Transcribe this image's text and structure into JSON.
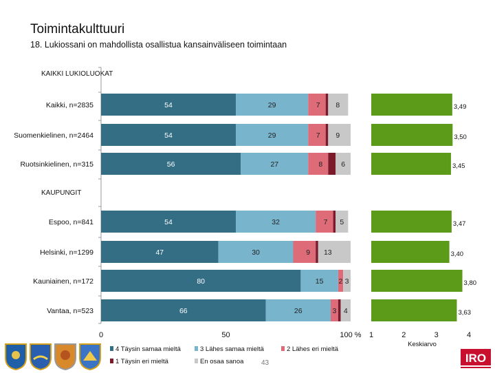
{
  "header": {
    "title": "Toimintakulttuuri",
    "subtitle": "18. Lukiossani on mahdollista osallistua kansainväliseen toimintaan"
  },
  "footer": {
    "page_number": "43"
  },
  "brand": {
    "logo_text": "IRO",
    "logo_color": "#c8102e"
  },
  "colors": {
    "agree_fully": "#336e85",
    "agree_somewhat": "#78b4cc",
    "disagree_somewhat": "#de6b78",
    "disagree_fully": "#7a1a2a",
    "dont_know": "#c8c8c8",
    "mean_bar": "#5c9a1a"
  },
  "chart_data": {
    "type": "bar",
    "orientation": "horizontal",
    "stacked": true,
    "group_labels": [
      "KAIKKI LUKIOLUOKAT",
      "KAUPUNGIT"
    ],
    "rows": [
      {
        "label": "Kaikki, n=2835",
        "group": 0,
        "values": [
          54,
          29,
          7,
          1,
          8
        ],
        "value_labels": [
          "54",
          "29",
          "7",
          "1",
          "8"
        ],
        "mean": 3.49,
        "mean_label": "3,49"
      },
      {
        "label": "Suomenkielinen, n=2464",
        "group": 0,
        "values": [
          54,
          29,
          7,
          1,
          9
        ],
        "value_labels": [
          "54",
          "29",
          "7",
          "1",
          "9"
        ],
        "mean": 3.5,
        "mean_label": "3,50"
      },
      {
        "label": "Ruotsinkielinen, n=315",
        "group": 0,
        "values": [
          56,
          27,
          8,
          3,
          6
        ],
        "value_labels": [
          "56",
          "27",
          "8",
          "3",
          "6"
        ],
        "mean": 3.45,
        "mean_label": "3,45"
      },
      {
        "label": "Espoo, n=841",
        "group": 1,
        "values": [
          54,
          32,
          7,
          1,
          5
        ],
        "value_labels": [
          "54",
          "32",
          "7",
          "1",
          "5"
        ],
        "mean": 3.47,
        "mean_label": "3,47"
      },
      {
        "label": "Helsinki, n=1299",
        "group": 1,
        "values": [
          47,
          30,
          9,
          1,
          13
        ],
        "value_labels": [
          "47",
          "30",
          "9",
          "1",
          "13"
        ],
        "mean": 3.4,
        "mean_label": "3,40"
      },
      {
        "label": "Kauniainen, n=172",
        "group": 1,
        "values": [
          80,
          15,
          2,
          0,
          3
        ],
        "value_labels": [
          "80",
          "15",
          "2",
          "",
          "3"
        ],
        "mean": 3.8,
        "mean_label": "3,80"
      },
      {
        "label": "Vantaa, n=523",
        "group": 1,
        "values": [
          66,
          26,
          3,
          1,
          4
        ],
        "value_labels": [
          "66",
          "26",
          "3",
          "",
          "4"
        ],
        "mean": 3.63,
        "mean_label": "3,63"
      }
    ],
    "series": [
      {
        "name": "4 Täysin samaa mieltä"
      },
      {
        "name": "3 Lähes samaa mieltä"
      },
      {
        "name": "2 Lähes eri mieltä"
      },
      {
        "name": "1 Täysin eri mieltä"
      },
      {
        "name": "En osaa sanoa"
      }
    ],
    "x_axis": {
      "range": [
        0,
        100
      ],
      "tick_labels": [
        "0",
        "50",
        "100 %"
      ]
    },
    "mean_axis": {
      "range": [
        1,
        4
      ],
      "tick_labels": [
        "1",
        "2",
        "3",
        "4"
      ],
      "label": "Keskiarvo"
    },
    "legend_position": "bottom"
  }
}
